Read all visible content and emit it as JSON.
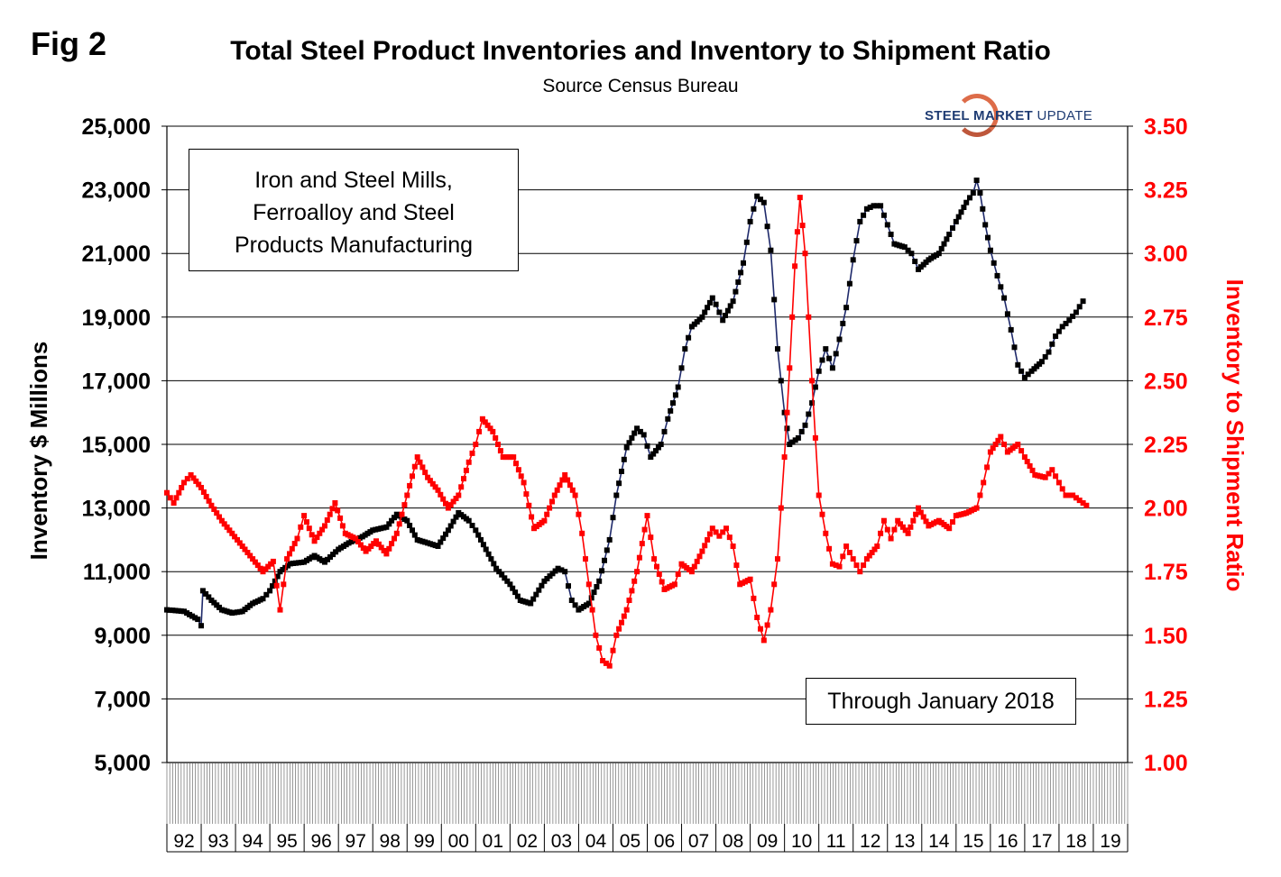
{
  "header": {
    "fig_label": "Fig 2",
    "title": "Total Steel Product Inventories and Inventory to Shipment Ratio",
    "subtitle": "Source Census Bureau"
  },
  "logo": {
    "text_bold": "STEEL MARKET",
    "text_light": "UPDATE"
  },
  "annotations": {
    "series_box": [
      "Iron and Steel Mills,",
      "Ferroalloy and Steel",
      "Products Manufacturing"
    ],
    "through": "Through January 2018"
  },
  "colors": {
    "inventory": "#000000",
    "ratio": "#ff0000",
    "inventory_line": "#1f2a6b",
    "grid": "#000000",
    "right_axis": "#ff0000"
  },
  "chart_data": {
    "type": "line",
    "title": "Total Steel Product Inventories and Inventory to Shipment Ratio",
    "x_tick_labels": [
      "92",
      "93",
      "94",
      "95",
      "96",
      "97",
      "98",
      "99",
      "00",
      "01",
      "02",
      "03",
      "04",
      "05",
      "06",
      "07",
      "08",
      "09",
      "10",
      "11",
      "12",
      "13",
      "14",
      "15",
      "16",
      "17",
      "18",
      "19"
    ],
    "x_range": [
      1992.0,
      2020.0
    ],
    "left_axis": {
      "label": "Inventory $ Millions",
      "range": [
        5000,
        25000
      ],
      "ticks": [
        "5,000",
        "7,000",
        "9,000",
        "11,000",
        "13,000",
        "15,000",
        "17,000",
        "19,000",
        "21,000",
        "23,000",
        "25,000"
      ]
    },
    "right_axis": {
      "label": "Inventory to Shipment Ratio",
      "range": [
        1.0,
        3.5
      ],
      "ticks": [
        "1.00",
        "1.25",
        "1.50",
        "1.75",
        "2.00",
        "2.25",
        "2.50",
        "2.75",
        "3.00",
        "3.25",
        "3.50"
      ]
    },
    "grid": "horizontal",
    "series": [
      {
        "axis": "left",
        "points": [
          [
            1992.0,
            9800
          ],
          [
            1992.5,
            9750
          ],
          [
            1992.9,
            9500
          ],
          [
            1993.0,
            9300
          ],
          [
            1993.05,
            10400
          ],
          [
            1993.3,
            10100
          ],
          [
            1993.6,
            9800
          ],
          [
            1993.9,
            9700
          ],
          [
            1994.2,
            9750
          ],
          [
            1994.5,
            10000
          ],
          [
            1994.8,
            10150
          ],
          [
            1995.0,
            10400
          ],
          [
            1995.3,
            11000
          ],
          [
            1995.6,
            11250
          ],
          [
            1996.0,
            11300
          ],
          [
            1996.3,
            11500
          ],
          [
            1996.6,
            11300
          ],
          [
            1997.0,
            11700
          ],
          [
            1997.3,
            11900
          ],
          [
            1997.7,
            12100
          ],
          [
            1998.0,
            12300
          ],
          [
            1998.4,
            12400
          ],
          [
            1998.7,
            12800
          ],
          [
            1999.0,
            12600
          ],
          [
            1999.3,
            12000
          ],
          [
            1999.6,
            11900
          ],
          [
            1999.9,
            11800
          ],
          [
            2000.2,
            12300
          ],
          [
            2000.5,
            12850
          ],
          [
            2000.8,
            12600
          ],
          [
            2001.0,
            12300
          ],
          [
            2001.3,
            11700
          ],
          [
            2001.6,
            11100
          ],
          [
            2002.0,
            10600
          ],
          [
            2002.3,
            10100
          ],
          [
            2002.6,
            10000
          ],
          [
            2003.0,
            10700
          ],
          [
            2003.4,
            11100
          ],
          [
            2003.6,
            11000
          ],
          [
            2003.8,
            10100
          ],
          [
            2004.0,
            9800
          ],
          [
            2004.3,
            10000
          ],
          [
            2004.6,
            10700
          ],
          [
            2004.9,
            12000
          ],
          [
            2005.1,
            13400
          ],
          [
            2005.4,
            14900
          ],
          [
            2005.7,
            15500
          ],
          [
            2005.9,
            15300
          ],
          [
            2006.1,
            14600
          ],
          [
            2006.4,
            15000
          ],
          [
            2006.6,
            15800
          ],
          [
            2006.9,
            16800
          ],
          [
            2007.1,
            18000
          ],
          [
            2007.3,
            18700
          ],
          [
            2007.6,
            19000
          ],
          [
            2007.9,
            19600
          ],
          [
            2008.0,
            19400
          ],
          [
            2008.2,
            18900
          ],
          [
            2008.5,
            19500
          ],
          [
            2008.8,
            20700
          ],
          [
            2009.0,
            22000
          ],
          [
            2009.2,
            22800
          ],
          [
            2009.4,
            22600
          ],
          [
            2009.6,
            21100
          ],
          [
            2009.8,
            18000
          ],
          [
            2010.0,
            16000
          ],
          [
            2010.15,
            15000
          ],
          [
            2010.4,
            15200
          ],
          [
            2010.6,
            15600
          ],
          [
            2010.8,
            16300
          ],
          [
            2011.0,
            17300
          ],
          [
            2011.2,
            18000
          ],
          [
            2011.4,
            17400
          ],
          [
            2011.6,
            18300
          ],
          [
            2011.8,
            19300
          ],
          [
            2012.0,
            20800
          ],
          [
            2012.2,
            22000
          ],
          [
            2012.4,
            22400
          ],
          [
            2012.6,
            22500
          ],
          [
            2012.8,
            22500
          ],
          [
            2013.0,
            21900
          ],
          [
            2013.2,
            21300
          ],
          [
            2013.5,
            21200
          ],
          [
            2013.7,
            21000
          ],
          [
            2013.9,
            20500
          ],
          [
            2014.2,
            20800
          ],
          [
            2014.5,
            21000
          ],
          [
            2014.8,
            21600
          ],
          [
            2015.0,
            22000
          ],
          [
            2015.3,
            22600
          ],
          [
            2015.5,
            22900
          ],
          [
            2015.6,
            23300
          ],
          [
            2015.7,
            22900
          ],
          [
            2015.85,
            21900
          ],
          [
            2016.0,
            21100
          ],
          [
            2016.2,
            20300
          ],
          [
            2016.4,
            19600
          ],
          [
            2016.6,
            18600
          ],
          [
            2016.8,
            17500
          ],
          [
            2017.0,
            17100
          ],
          [
            2017.2,
            17300
          ],
          [
            2017.5,
            17600
          ],
          [
            2017.7,
            17900
          ],
          [
            2017.9,
            18400
          ],
          [
            2018.1,
            18700
          ],
          [
            2018.3,
            18900
          ],
          [
            2018.5,
            19150
          ],
          [
            2018.7,
            19500
          ]
        ]
      },
      {
        "axis": "right",
        "points": [
          [
            1992.0,
            2.06
          ],
          [
            1992.2,
            2.02
          ],
          [
            1992.5,
            2.1
          ],
          [
            1992.7,
            2.13
          ],
          [
            1993.0,
            2.08
          ],
          [
            1993.3,
            2.01
          ],
          [
            1993.6,
            1.95
          ],
          [
            1993.9,
            1.9
          ],
          [
            1994.2,
            1.85
          ],
          [
            1994.5,
            1.8
          ],
          [
            1994.8,
            1.75
          ],
          [
            1995.1,
            1.79
          ],
          [
            1995.3,
            1.6
          ],
          [
            1995.5,
            1.8
          ],
          [
            1995.8,
            1.88
          ],
          [
            1996.0,
            1.97
          ],
          [
            1996.3,
            1.87
          ],
          [
            1996.6,
            1.93
          ],
          [
            1996.9,
            2.02
          ],
          [
            1997.2,
            1.9
          ],
          [
            1997.5,
            1.88
          ],
          [
            1997.8,
            1.83
          ],
          [
            1998.1,
            1.87
          ],
          [
            1998.4,
            1.82
          ],
          [
            1998.7,
            1.9
          ],
          [
            1999.0,
            2.05
          ],
          [
            1999.3,
            2.2
          ],
          [
            1999.6,
            2.12
          ],
          [
            1999.9,
            2.07
          ],
          [
            2000.2,
            2.0
          ],
          [
            2000.5,
            2.05
          ],
          [
            2000.8,
            2.18
          ],
          [
            2001.0,
            2.25
          ],
          [
            2001.2,
            2.35
          ],
          [
            2001.5,
            2.3
          ],
          [
            2001.8,
            2.2
          ],
          [
            2002.1,
            2.2
          ],
          [
            2002.4,
            2.1
          ],
          [
            2002.7,
            1.92
          ],
          [
            2003.0,
            1.95
          ],
          [
            2003.3,
            2.05
          ],
          [
            2003.6,
            2.13
          ],
          [
            2003.9,
            2.05
          ],
          [
            2004.1,
            1.9
          ],
          [
            2004.3,
            1.7
          ],
          [
            2004.5,
            1.5
          ],
          [
            2004.7,
            1.4
          ],
          [
            2004.9,
            1.38
          ],
          [
            2005.1,
            1.5
          ],
          [
            2005.4,
            1.6
          ],
          [
            2005.7,
            1.75
          ],
          [
            2006.0,
            1.97
          ],
          [
            2006.2,
            1.8
          ],
          [
            2006.5,
            1.68
          ],
          [
            2006.8,
            1.7
          ],
          [
            2007.0,
            1.78
          ],
          [
            2007.3,
            1.75
          ],
          [
            2007.6,
            1.83
          ],
          [
            2007.9,
            1.92
          ],
          [
            2008.1,
            1.89
          ],
          [
            2008.3,
            1.92
          ],
          [
            2008.5,
            1.85
          ],
          [
            2008.7,
            1.7
          ],
          [
            2009.0,
            1.72
          ],
          [
            2009.2,
            1.57
          ],
          [
            2009.4,
            1.48
          ],
          [
            2009.6,
            1.6
          ],
          [
            2009.8,
            1.8
          ],
          [
            2010.0,
            2.2
          ],
          [
            2010.15,
            2.55
          ],
          [
            2010.3,
            2.95
          ],
          [
            2010.45,
            3.22
          ],
          [
            2010.6,
            3.0
          ],
          [
            2010.8,
            2.5
          ],
          [
            2011.0,
            2.05
          ],
          [
            2011.2,
            1.9
          ],
          [
            2011.4,
            1.78
          ],
          [
            2011.6,
            1.77
          ],
          [
            2011.8,
            1.85
          ],
          [
            2012.0,
            1.8
          ],
          [
            2012.2,
            1.75
          ],
          [
            2012.4,
            1.8
          ],
          [
            2012.7,
            1.85
          ],
          [
            2012.9,
            1.95
          ],
          [
            2013.1,
            1.88
          ],
          [
            2013.3,
            1.95
          ],
          [
            2013.6,
            1.9
          ],
          [
            2013.9,
            2.0
          ],
          [
            2014.2,
            1.93
          ],
          [
            2014.5,
            1.95
          ],
          [
            2014.8,
            1.92
          ],
          [
            2015.0,
            1.97
          ],
          [
            2015.3,
            1.98
          ],
          [
            2015.6,
            2.0
          ],
          [
            2015.8,
            2.1
          ],
          [
            2016.0,
            2.22
          ],
          [
            2016.3,
            2.28
          ],
          [
            2016.5,
            2.22
          ],
          [
            2016.8,
            2.25
          ],
          [
            2017.0,
            2.2
          ],
          [
            2017.3,
            2.13
          ],
          [
            2017.6,
            2.12
          ],
          [
            2017.8,
            2.15
          ],
          [
            2018.0,
            2.1
          ],
          [
            2018.2,
            2.05
          ],
          [
            2018.4,
            2.05
          ],
          [
            2018.6,
            2.03
          ],
          [
            2018.8,
            2.01
          ]
        ]
      }
    ]
  }
}
